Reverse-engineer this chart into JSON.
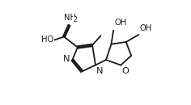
{
  "bg_color": "#ffffff",
  "line_color": "#1a1a1a",
  "lw": 1.3,
  "font_size": 7.2,
  "fig_width": 2.36,
  "fig_height": 1.3,
  "dpi": 100,
  "xlim": [
    0,
    100
  ],
  "ylim": [
    0,
    100
  ]
}
